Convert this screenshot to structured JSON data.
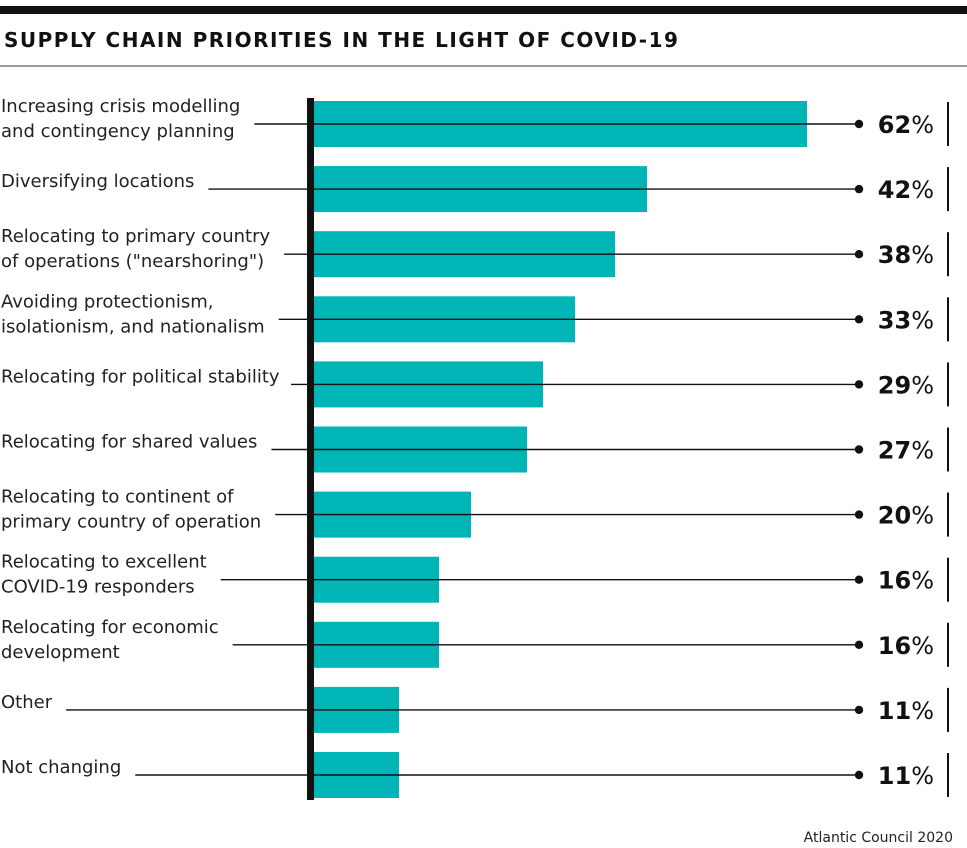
{
  "title": "SUPPLY CHAIN PRIORITIES IN THE LIGHT OF COVID-19",
  "source": "Atlantic Council 2020",
  "colors": {
    "bar": "#00b5b5",
    "axis": "#111111",
    "leader": "#111111"
  },
  "chart_data": {
    "type": "bar",
    "orientation": "horizontal",
    "title": "SUPPLY CHAIN PRIORITIES IN THE LIGHT OF COVID-19",
    "unit": "%",
    "categories": [
      [
        "Increasing crisis modelling",
        "and contingency planning"
      ],
      [
        "Diversifying locations"
      ],
      [
        "Relocating to primary country",
        "of operations (\"nearshoring\")"
      ],
      [
        "Avoiding protectionism,",
        "isolationism, and nationalism"
      ],
      [
        "Relocating for political stability"
      ],
      [
        "Relocating for shared values"
      ],
      [
        "Relocating to continent of",
        "primary country of operation"
      ],
      [
        "Relocating to excellent",
        "COVID-19 responders"
      ],
      [
        "Relocating for economic",
        "development"
      ],
      [
        "Other"
      ],
      [
        "Not changing"
      ]
    ],
    "values": [
      62,
      42,
      38,
      33,
      29,
      27,
      20,
      16,
      16,
      11,
      11
    ],
    "xlim": [
      0,
      62
    ]
  }
}
